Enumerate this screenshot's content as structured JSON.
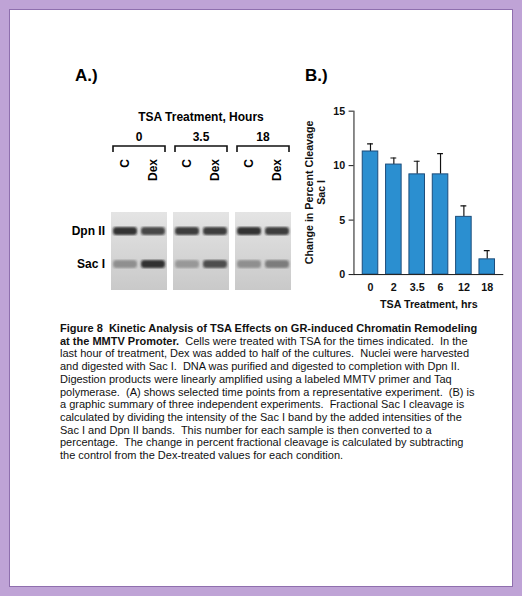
{
  "panel_a": {
    "label": "A.)",
    "header": "TSA Treatment, Hours",
    "bands": [
      "Dpn II",
      "Sac I"
    ],
    "groups": [
      {
        "name": "0",
        "lanes": [
          "C",
          "Dex"
        ],
        "intensities": [
          [
            0.85,
            0.75
          ],
          [
            0.35,
            0.85
          ]
        ]
      },
      {
        "name": "3.5",
        "lanes": [
          "C",
          "Dex"
        ],
        "intensities": [
          [
            0.8,
            0.8
          ],
          [
            0.3,
            0.7
          ]
        ]
      },
      {
        "name": "18",
        "lanes": [
          "C",
          "Dex"
        ],
        "intensities": [
          [
            0.85,
            0.8
          ],
          [
            0.35,
            0.45
          ]
        ]
      }
    ]
  },
  "chart_data": {
    "type": "bar",
    "panel_label": "B.)",
    "categories": [
      "0",
      "2",
      "3.5",
      "6",
      "12",
      "18"
    ],
    "values": [
      11.3,
      10.1,
      9.2,
      9.2,
      5.3,
      1.4
    ],
    "errors": [
      0.7,
      0.6,
      1.2,
      1.9,
      1.0,
      0.8
    ],
    "color": "#2b8fd0",
    "ylim": [
      0,
      15
    ],
    "yticks": [
      0,
      5,
      10,
      15
    ],
    "x_label": "TSA Treatment, hrs",
    "y_label": "Change in Percent Cleavage\nSac I"
  },
  "caption": {
    "title": "Figure 8  Kinetic Analysis of TSA Effects on GR-induced Chromatin Remodeling at the MMTV Promoter.",
    "text": "Cells were treated with TSA for the times indicated.  In the last hour of treatment, Dex was added to half of the cultures.  Nuclei were harvested and digested with Sac I.  DNA was purified and digested to completion with Dpn II.  Digestion products were linearly amplified using a labeled MMTV primer and Taq polymerase.  (A) shows selected time points from a representative experiment.  (B) is a graphic summary of three independent experiments.  Fractional Sac I cleavage is calculated by dividing the intensity of the Sac I band by the added intensities of the Sac I and Dpn II bands.  This number for each sample is then converted to a percentage.  The change in percent fractional cleavage is calculated by subtracting the control from the Dex-treated values for each condition."
  }
}
